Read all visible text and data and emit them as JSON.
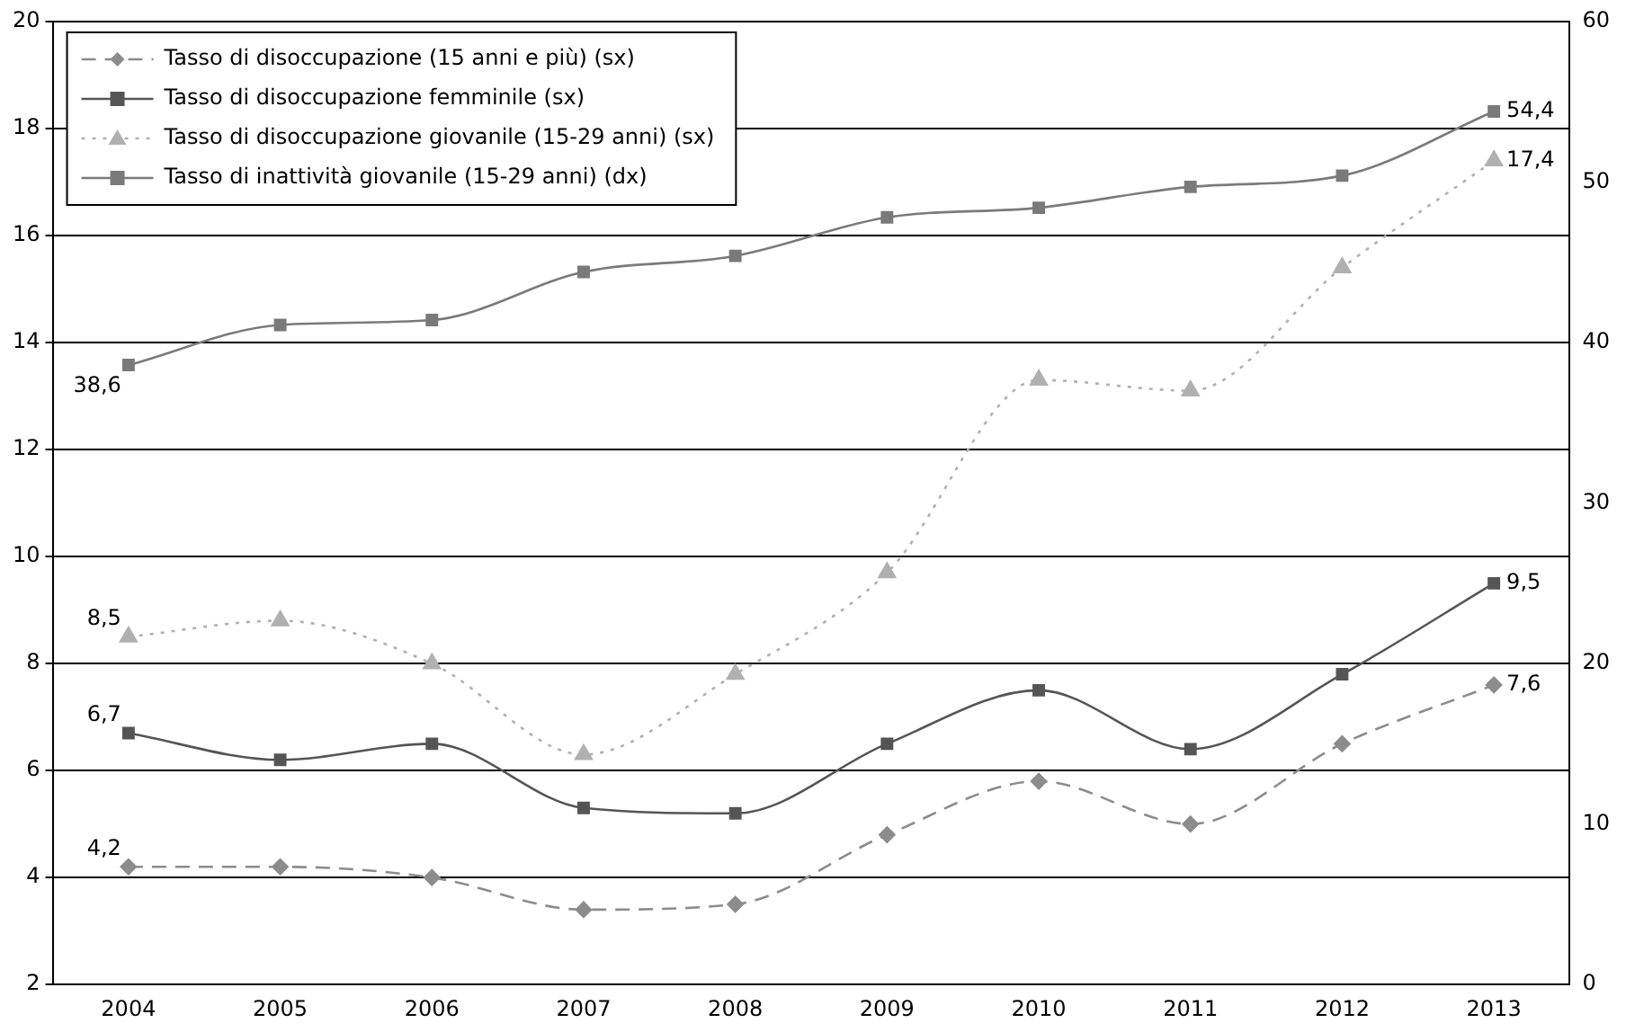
{
  "chart_data": {
    "type": "line",
    "categories": [
      "2004",
      "2005",
      "2006",
      "2007",
      "2008",
      "2009",
      "2010",
      "2011",
      "2012",
      "2013"
    ],
    "series": [
      {
        "name": "Tasso di disoccupazione (15 anni e più) (sx)",
        "color": "#8c8c8c",
        "marker": "diamond",
        "line_style": "dashed",
        "values": [
          4.2,
          4.2,
          4.0,
          3.4,
          3.5,
          4.8,
          5.8,
          5.0,
          6.5,
          7.6
        ],
        "value_labels": [
          "4,2",
          null,
          null,
          null,
          null,
          null,
          null,
          null,
          null,
          "7,6"
        ]
      },
      {
        "name": "Tasso di disoccupazione femminile (sx)",
        "color": "#555555",
        "marker": "square",
        "line_style": "solid",
        "values": [
          6.7,
          6.2,
          6.5,
          5.3,
          5.2,
          6.5,
          7.5,
          6.4,
          7.8,
          9.5
        ],
        "value_labels": [
          "6,7",
          null,
          null,
          null,
          null,
          null,
          null,
          null,
          null,
          "9,5"
        ]
      },
      {
        "name": "Tasso di disoccupazione giovanile (15-29 anni) (sx)",
        "color": "#b0b0b0",
        "marker": "triangle",
        "line_style": "dotted",
        "values": [
          8.5,
          8.8,
          8.0,
          6.3,
          7.8,
          9.7,
          13.3,
          13.1,
          15.4,
          17.4
        ],
        "value_labels": [
          "8,5",
          null,
          null,
          null,
          null,
          null,
          null,
          null,
          null,
          "17,4"
        ]
      },
      {
        "name": "Tasso di inattività giovanile (15-29 anni) (dx)",
        "color": "#7a7a7a",
        "marker": "square",
        "line_style": "solid",
        "axis": "y2",
        "values": [
          38.6,
          41.1,
          41.4,
          44.4,
          45.4,
          47.8,
          48.4,
          49.7,
          50.4,
          54.4
        ],
        "value_labels": [
          "38,6",
          null,
          null,
          null,
          null,
          null,
          null,
          null,
          null,
          "54,4"
        ]
      }
    ],
    "ylim": [
      2,
      20
    ],
    "yticks": [
      2,
      4,
      6,
      8,
      10,
      12,
      14,
      16,
      18,
      20
    ],
    "y2lim": [
      0,
      60
    ],
    "y2ticks": [
      0,
      10,
      20,
      30,
      40,
      50,
      60
    ],
    "grid": "y",
    "legend": "top left"
  }
}
